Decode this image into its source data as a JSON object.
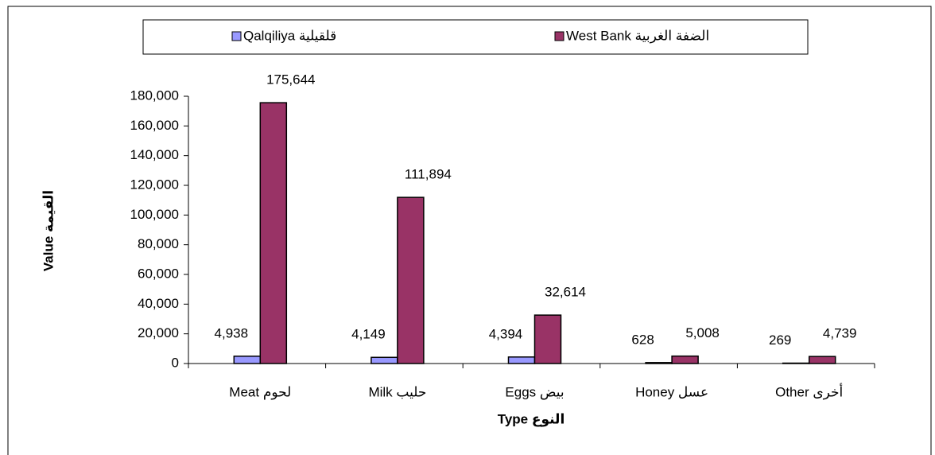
{
  "chart_data": {
    "type": "bar",
    "categories": [
      "لحوم Meat",
      "حليب Milk",
      "بيض Eggs",
      "عسل Honey",
      "أخرى Other"
    ],
    "series": [
      {
        "name": "Qalqiliya قلقيلية",
        "color": "#9999ff",
        "values": [
          4938,
          4149,
          4394,
          628,
          269
        ],
        "value_labels": [
          "4,938",
          "4,149",
          "4,394",
          "628",
          "269"
        ]
      },
      {
        "name": "West Bank الضفة الغربية",
        "color": "#993366",
        "values": [
          175644,
          111894,
          32614,
          5008,
          4739
        ],
        "value_labels": [
          "175,644",
          "111,894",
          "32,614",
          "5,008",
          "4,739"
        ]
      }
    ],
    "xlabel": "النوع Type",
    "ylabel": "Value القيمة",
    "ylim": [
      0,
      180000
    ],
    "yticks": [
      0,
      {
        "value": 20000,
        "label": "20,000"
      },
      {
        "value": 40000,
        "label": "40,000"
      },
      {
        "value": 60000,
        "label": "60,000"
      },
      {
        "value": 80000,
        "label": "80,000"
      },
      {
        "value": 100000,
        "label": "100,000"
      },
      {
        "value": 120000,
        "label": "120,000"
      },
      {
        "value": 140000,
        "label": "140,000"
      },
      {
        "value": 160000,
        "label": "160,000"
      },
      {
        "value": 180000,
        "label": "180,000"
      }
    ],
    "legend": "top"
  }
}
